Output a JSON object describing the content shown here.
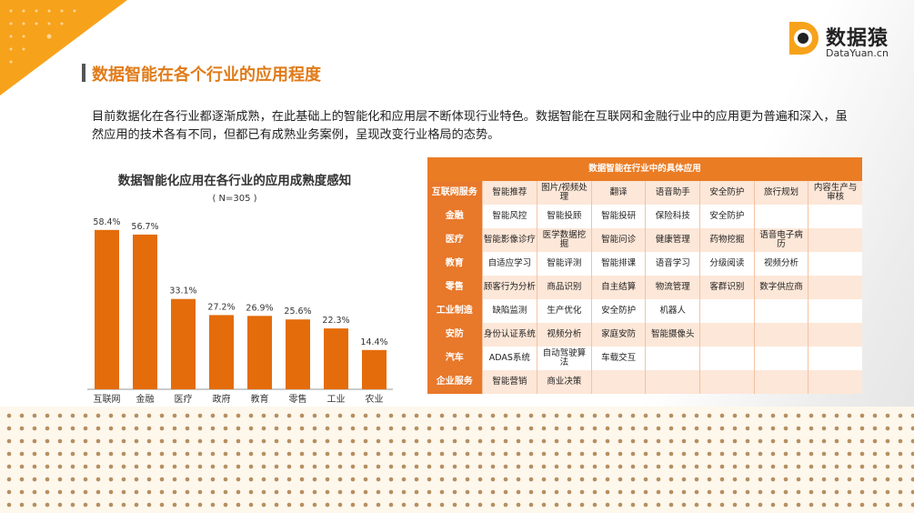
{
  "logo": {
    "cn": "数据猿",
    "en": "DataYuan.cn"
  },
  "page_title": "数据智能在各个行业的应用程度",
  "intro": "目前数据化在各行业都逐渐成熟，在此基础上的智能化和应用层不断体现行业特色。数据智能在互联网和金融行业中的应用更为普遍和深入，虽然应用的技术各有不同，但都已有成熟业务案例，呈现改变行业格局的态势。",
  "colors": {
    "accent": "#e07b19",
    "bar": "#e46c0a",
    "table_header": "#ea7c24"
  },
  "chart_data": {
    "type": "bar",
    "title": "数据智能化应用在各行业的应用成熟度感知",
    "subtitle": "( N=305 )",
    "categories": [
      "互联网",
      "金融",
      "医疗",
      "政府",
      "教育",
      "零售",
      "工业",
      "农业"
    ],
    "values": [
      58.4,
      56.7,
      33.1,
      27.2,
      26.9,
      25.6,
      22.3,
      14.4
    ],
    "value_labels": [
      "58.4%",
      "56.7%",
      "33.1%",
      "27.2%",
      "26.9%",
      "25.6%",
      "22.3%",
      "14.4%"
    ],
    "ylim": [
      0,
      60
    ],
    "xlabel": "",
    "ylabel": "",
    "grid": false,
    "legend": "none"
  },
  "table": {
    "title": "数据智能在行业中的具体应用",
    "rows": [
      {
        "industry": "互联网服务",
        "cells": [
          "智能推荐",
          "图片/视频处理",
          "翻译",
          "语音助手",
          "安全防护",
          "旅行规划",
          "内容生产与审核"
        ]
      },
      {
        "industry": "金融",
        "cells": [
          "智能风控",
          "智能投顾",
          "智能投研",
          "保险科技",
          "安全防护",
          "",
          ""
        ]
      },
      {
        "industry": "医疗",
        "cells": [
          "智能影像诊疗",
          "医学数据挖掘",
          "智能问诊",
          "健康管理",
          "药物挖掘",
          "语音电子病历",
          ""
        ]
      },
      {
        "industry": "教育",
        "cells": [
          "自适应学习",
          "智能评测",
          "智能排课",
          "语音学习",
          "分级阅读",
          "视频分析",
          ""
        ]
      },
      {
        "industry": "零售",
        "cells": [
          "顾客行为分析",
          "商品识别",
          "自主结算",
          "物流管理",
          "客群识别",
          "数字供应商",
          ""
        ]
      },
      {
        "industry": "工业制造",
        "cells": [
          "缺陷监测",
          "生产优化",
          "安全防护",
          "机器人",
          "",
          "",
          ""
        ]
      },
      {
        "industry": "安防",
        "cells": [
          "身份认证系统",
          "视频分析",
          "家庭安防",
          "智能摄像头",
          "",
          "",
          ""
        ]
      },
      {
        "industry": "汽车",
        "cells": [
          "ADAS系统",
          "自动驾驶算法",
          "车载交互",
          "",
          "",
          "",
          ""
        ]
      },
      {
        "industry": "企业服务",
        "cells": [
          "智能营销",
          "商业决策",
          "",
          "",
          "",
          "",
          ""
        ]
      }
    ]
  }
}
